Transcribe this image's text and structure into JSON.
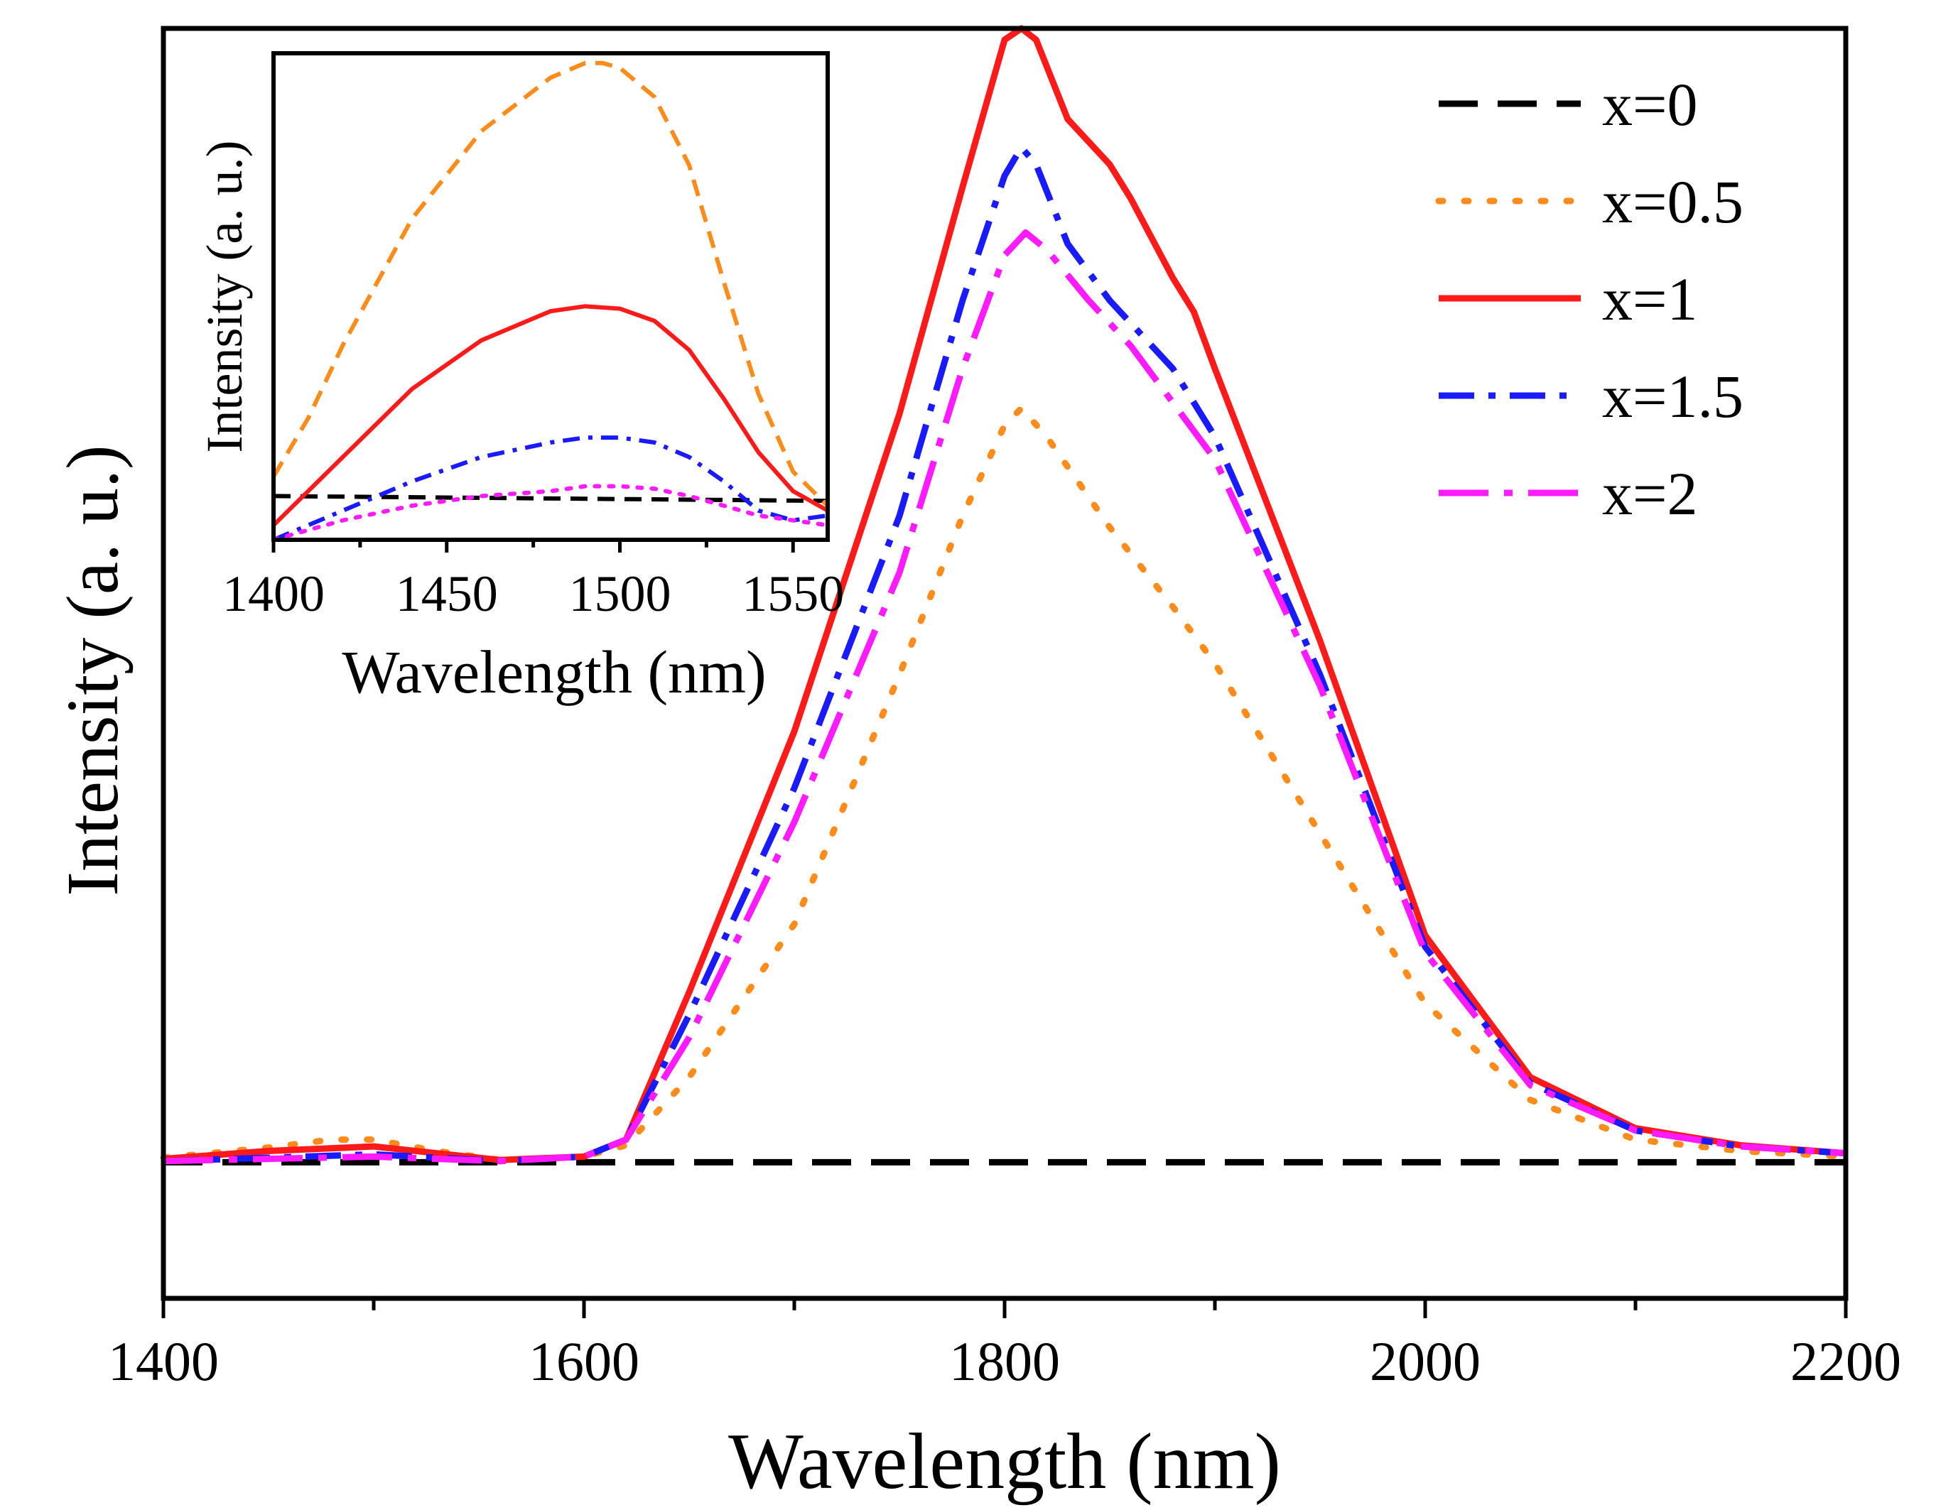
{
  "chart_data": [
    {
      "type": "line",
      "title": "",
      "xlabel": "Wavelength (nm)",
      "ylabel": "Intensity (a. u.)",
      "xlim": [
        1400,
        2200
      ],
      "ylim": [
        -0.12,
        1.0
      ],
      "xticks": [
        1400,
        1600,
        1800,
        2000,
        2200
      ],
      "legend_position": "top-right",
      "series": [
        {
          "name": "x=0",
          "label": "x=0",
          "color": "#000000",
          "dash": "dash",
          "x": [
            1400,
            2200
          ],
          "y": [
            0,
            0
          ]
        },
        {
          "name": "x=0.5",
          "label": "x=0.5",
          "color": "#FF8C1A",
          "dash": "dot",
          "x": [
            1400,
            1450,
            1480,
            1500,
            1530,
            1560,
            1600,
            1620,
            1650,
            1700,
            1750,
            1780,
            1800,
            1808,
            1820,
            1850,
            1880,
            1900,
            1950,
            2000,
            2050,
            2100,
            2150,
            2200
          ],
          "y": [
            0.004,
            0.013,
            0.02,
            0.02,
            0.01,
            0.002,
            0.005,
            0.015,
            0.075,
            0.21,
            0.43,
            0.57,
            0.65,
            0.665,
            0.64,
            0.56,
            0.49,
            0.44,
            0.29,
            0.14,
            0.055,
            0.02,
            0.01,
            0.005
          ]
        },
        {
          "name": "x=1",
          "label": "x=1",
          "color": "#FF1A1A",
          "dash": "solid",
          "x": [
            1400,
            1450,
            1500,
            1530,
            1560,
            1600,
            1620,
            1650,
            1700,
            1750,
            1780,
            1800,
            1808,
            1815,
            1830,
            1850,
            1860,
            1880,
            1890,
            1900,
            1950,
            2000,
            2050,
            2100,
            2150,
            2200
          ],
          "y": [
            0.003,
            0.01,
            0.014,
            0.008,
            0.002,
            0.005,
            0.02,
            0.15,
            0.38,
            0.66,
            0.86,
            0.99,
            1.0,
            0.99,
            0.92,
            0.88,
            0.85,
            0.78,
            0.75,
            0.7,
            0.46,
            0.2,
            0.075,
            0.03,
            0.015,
            0.008
          ]
        },
        {
          "name": "x=1.5",
          "label": "x=1.5",
          "color": "#1A1AFF",
          "dash": "dashdot",
          "x": [
            1400,
            1450,
            1500,
            1530,
            1560,
            1600,
            1620,
            1650,
            1700,
            1750,
            1780,
            1800,
            1808,
            1815,
            1830,
            1850,
            1880,
            1900,
            1950,
            2000,
            2050,
            2100,
            2150,
            2200
          ],
          "y": [
            0.001,
            0.004,
            0.007,
            0.004,
            0.001,
            0.005,
            0.02,
            0.13,
            0.33,
            0.57,
            0.76,
            0.87,
            0.895,
            0.88,
            0.81,
            0.76,
            0.7,
            0.64,
            0.43,
            0.19,
            0.07,
            0.028,
            0.014,
            0.008
          ]
        },
        {
          "name": "x=2",
          "label": "x=2",
          "color": "#FF1AFF",
          "dash": "dashdotlong",
          "x": [
            1400,
            1450,
            1500,
            1530,
            1560,
            1600,
            1620,
            1650,
            1700,
            1750,
            1780,
            1800,
            1810,
            1820,
            1840,
            1860,
            1880,
            1900,
            1950,
            2000,
            2050,
            2100,
            2150,
            2200
          ],
          "y": [
            0.001,
            0.003,
            0.005,
            0.003,
            0.001,
            0.005,
            0.02,
            0.11,
            0.3,
            0.52,
            0.7,
            0.8,
            0.82,
            0.805,
            0.76,
            0.72,
            0.67,
            0.62,
            0.42,
            0.185,
            0.068,
            0.028,
            0.014,
            0.008
          ]
        }
      ]
    },
    {
      "type": "line",
      "title": "",
      "xlabel": "Wavelength (nm)",
      "ylabel": "Intensity (a. u.)",
      "xlim": [
        1400,
        1560
      ],
      "ylim": [
        0,
        1.0
      ],
      "xticks": [
        1400,
        1450,
        1500,
        1550
      ],
      "series": [
        {
          "name": "x=0",
          "color": "#000000",
          "dash": "dash",
          "x": [
            1400,
            1560
          ],
          "y": [
            0.09,
            0.08
          ]
        },
        {
          "name": "x=0.5",
          "color": "#FF8C1A",
          "dash": "dash",
          "x": [
            1400,
            1410,
            1420,
            1440,
            1460,
            1480,
            1490,
            1495,
            1500,
            1510,
            1520,
            1530,
            1540,
            1550,
            1560
          ],
          "y": [
            0.13,
            0.25,
            0.4,
            0.66,
            0.84,
            0.95,
            0.98,
            0.98,
            0.97,
            0.91,
            0.77,
            0.53,
            0.3,
            0.14,
            0.07
          ]
        },
        {
          "name": "x=1",
          "color": "#FF1A1A",
          "dash": "solid",
          "x": [
            1400,
            1420,
            1440,
            1460,
            1480,
            1490,
            1500,
            1510,
            1520,
            1530,
            1540,
            1550,
            1560
          ],
          "y": [
            0.03,
            0.17,
            0.31,
            0.41,
            0.47,
            0.48,
            0.475,
            0.45,
            0.39,
            0.29,
            0.18,
            0.1,
            0.06
          ]
        },
        {
          "name": "x=1.5",
          "color": "#1A1AFF",
          "dash": "dashdot",
          "x": [
            1400,
            1420,
            1440,
            1460,
            1480,
            1490,
            1500,
            1510,
            1520,
            1530,
            1540,
            1550,
            1560
          ],
          "y": [
            0.0,
            0.06,
            0.12,
            0.17,
            0.2,
            0.21,
            0.21,
            0.2,
            0.17,
            0.12,
            0.06,
            0.04,
            0.05
          ]
        },
        {
          "name": "x=2",
          "color": "#FF1AFF",
          "dash": "dot",
          "x": [
            1400,
            1420,
            1440,
            1460,
            1480,
            1490,
            1500,
            1510,
            1520,
            1530,
            1540,
            1550,
            1560
          ],
          "y": [
            0.0,
            0.04,
            0.07,
            0.09,
            0.1,
            0.11,
            0.11,
            0.105,
            0.09,
            0.07,
            0.05,
            0.04,
            0.03
          ]
        }
      ]
    }
  ]
}
